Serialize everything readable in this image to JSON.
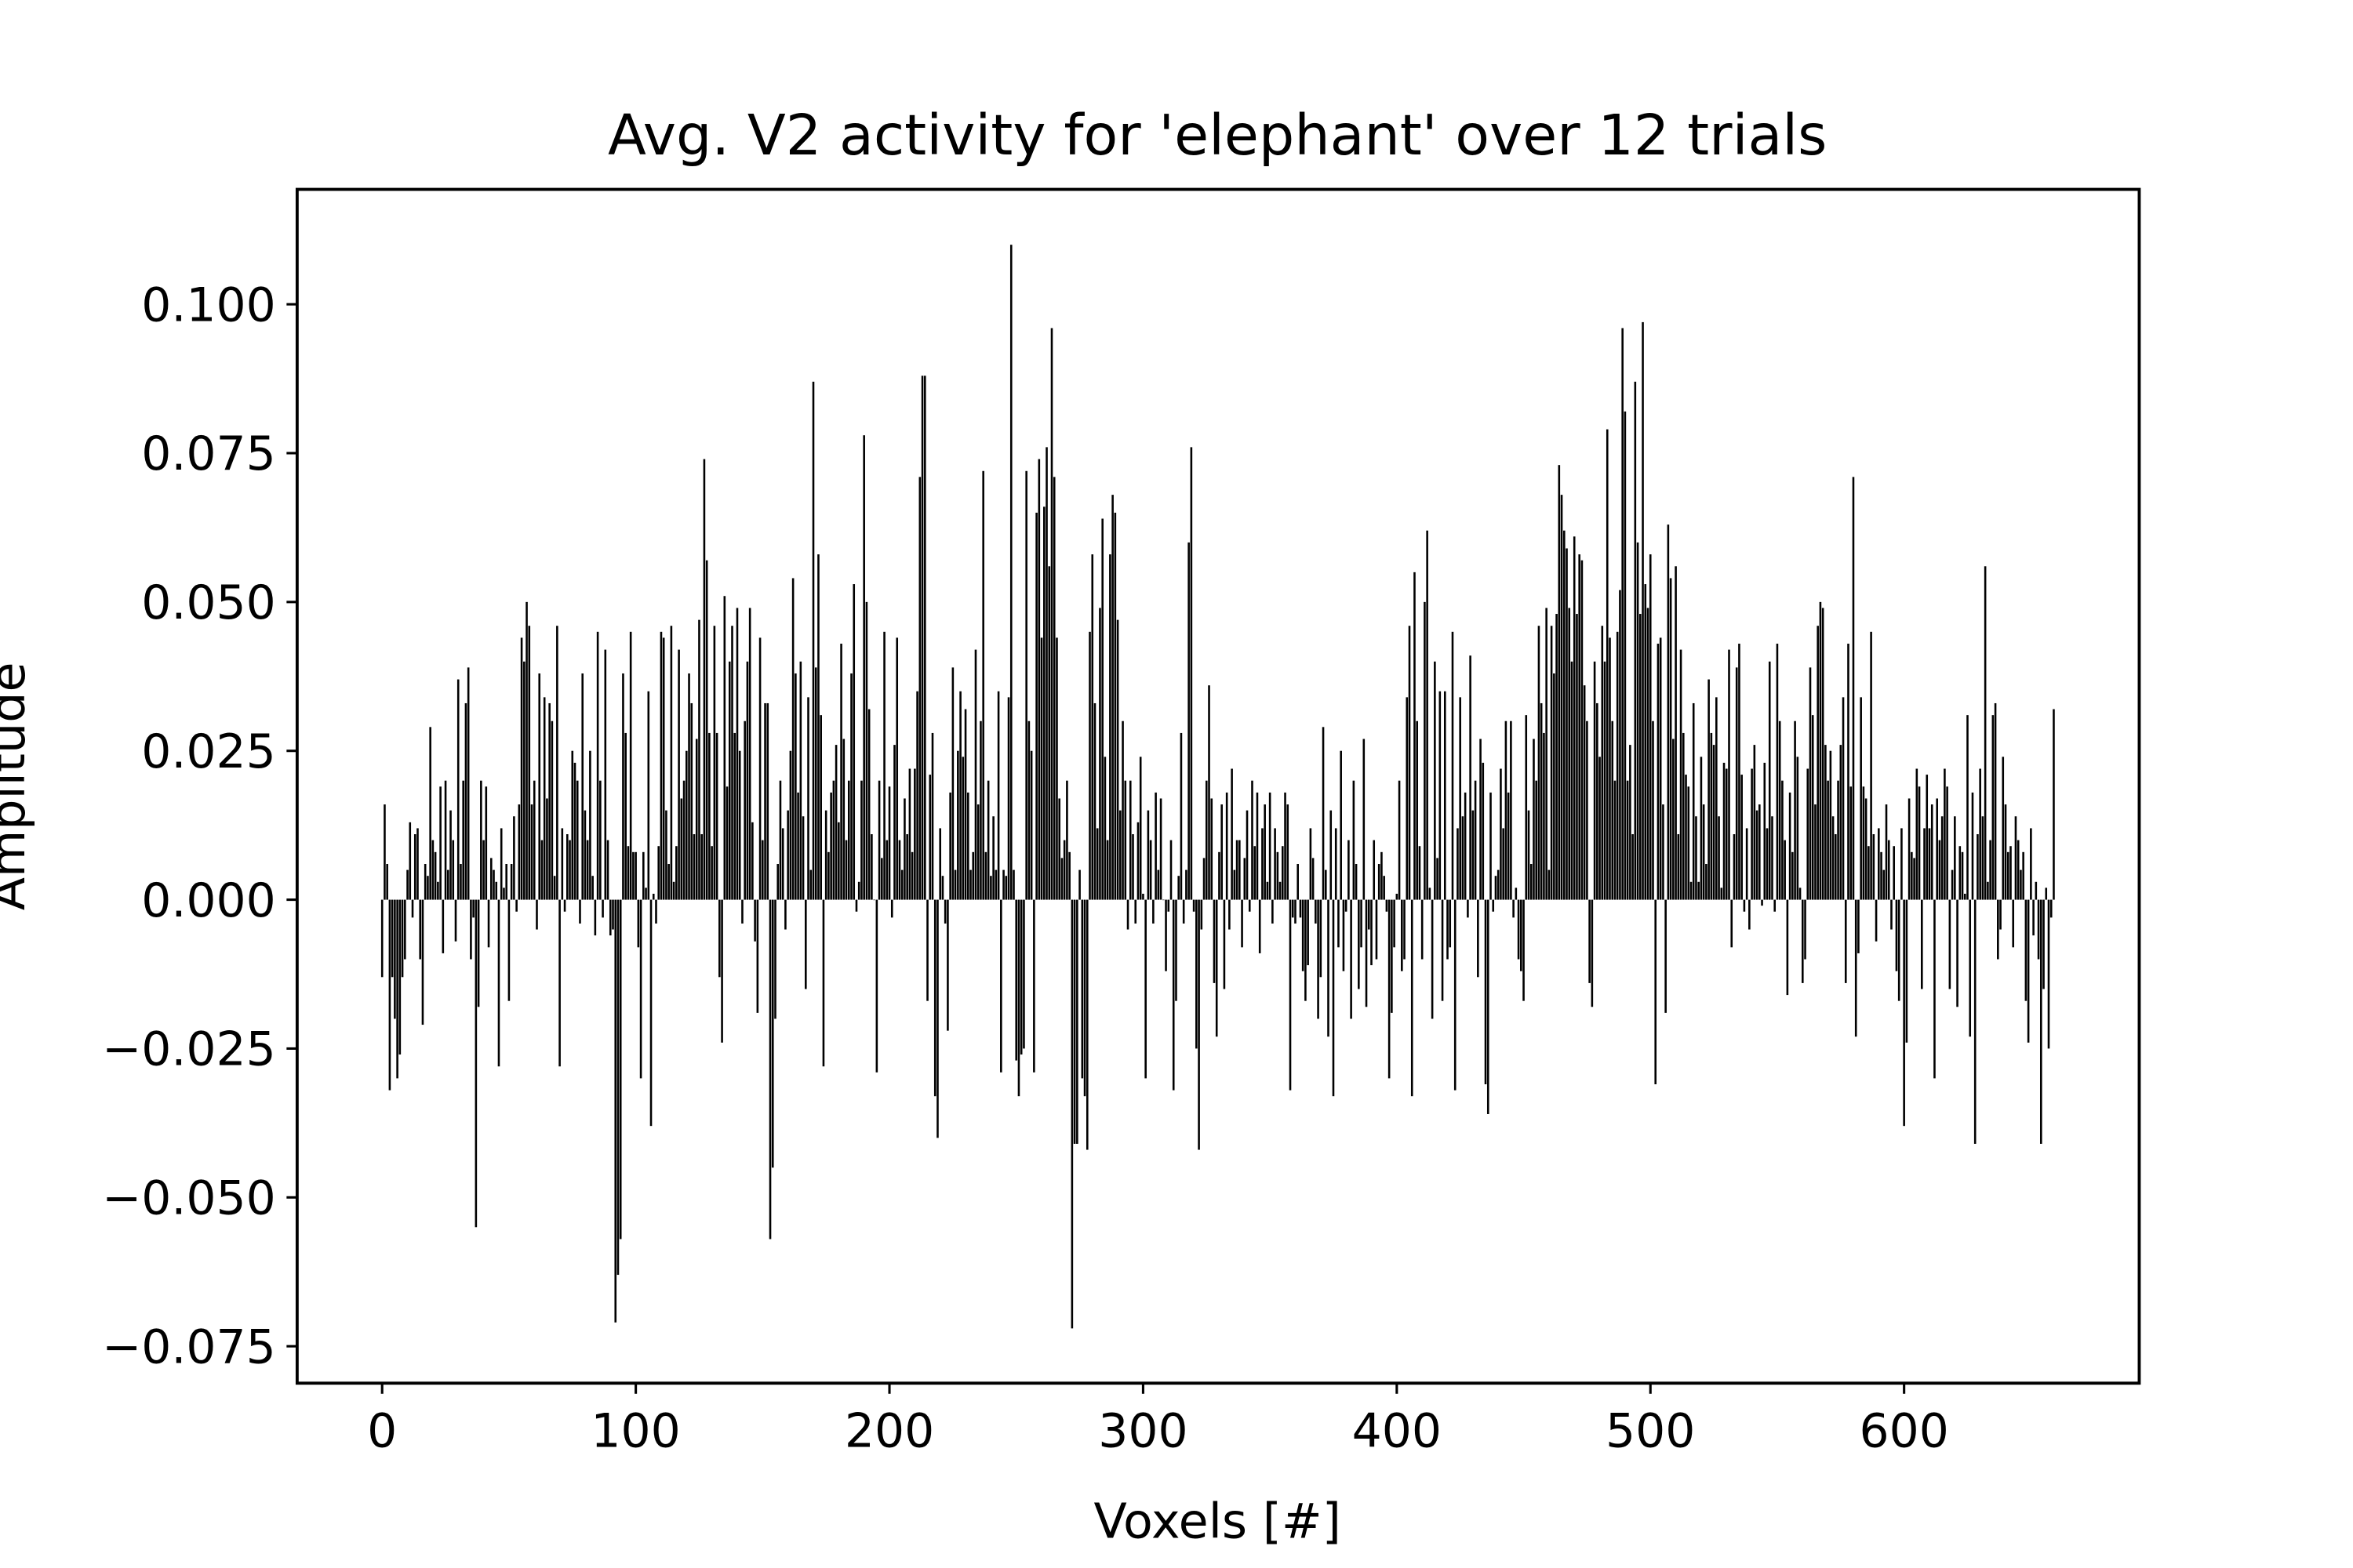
{
  "chart_data": {
    "type": "bar",
    "title": "Avg. V2 activity for 'elephant' over 12 trials",
    "xlabel": "Voxels [#]",
    "ylabel": "Amplitude",
    "color": "#000000",
    "xlim": [
      -33.5,
      692.7
    ],
    "ylim": [
      -0.0812,
      0.1193
    ],
    "xticks": [
      0,
      100,
      200,
      300,
      400,
      500,
      600
    ],
    "yticks": [
      {
        "value": -0.075,
        "label": "−0.075"
      },
      {
        "value": -0.05,
        "label": "−0.050"
      },
      {
        "value": -0.025,
        "label": "−0.025"
      },
      {
        "value": 0,
        "label": "0.000"
      },
      {
        "value": 0.025,
        "label": "0.025"
      },
      {
        "value": 0.05,
        "label": "0.050"
      },
      {
        "value": 0.075,
        "label": "0.075"
      },
      {
        "value": 0.1,
        "label": "0.100"
      }
    ],
    "x": [
      0,
      1,
      2,
      3,
      4,
      5,
      6,
      7,
      8,
      9,
      10,
      11,
      12,
      13,
      14,
      15,
      16,
      17,
      18,
      19,
      20,
      21,
      22,
      23,
      24,
      25,
      26,
      27,
      28,
      29,
      30,
      31,
      32,
      33,
      34,
      35,
      36,
      37,
      38,
      39,
      40,
      41,
      42,
      43,
      44,
      45,
      46,
      47,
      48,
      49,
      50,
      51,
      52,
      53,
      54,
      55,
      56,
      57,
      58,
      59,
      60,
      61,
      62,
      63,
      64,
      65,
      66,
      67,
      68,
      69,
      70,
      71,
      72,
      73,
      74,
      75,
      76,
      77,
      78,
      79,
      80,
      81,
      82,
      83,
      84,
      85,
      86,
      87,
      88,
      89,
      90,
      91,
      92,
      93,
      94,
      95,
      96,
      97,
      98,
      99,
      100,
      101,
      102,
      103,
      104,
      105,
      106,
      107,
      108,
      109,
      110,
      111,
      112,
      113,
      114,
      115,
      116,
      117,
      118,
      119,
      120,
      121,
      122,
      123,
      124,
      125,
      126,
      127,
      128,
      129,
      130,
      131,
      132,
      133,
      134,
      135,
      136,
      137,
      138,
      139,
      140,
      141,
      142,
      143,
      144,
      145,
      146,
      147,
      148,
      149,
      150,
      151,
      152,
      153,
      154,
      155,
      156,
      157,
      158,
      159,
      160,
      161,
      162,
      163,
      164,
      165,
      166,
      167,
      168,
      169,
      170,
      171,
      172,
      173,
      174,
      175,
      176,
      177,
      178,
      179,
      180,
      181,
      182,
      183,
      184,
      185,
      186,
      187,
      188,
      189,
      190,
      191,
      192,
      193,
      194,
      195,
      196,
      197,
      198,
      199,
      200,
      201,
      202,
      203,
      204,
      205,
      206,
      207,
      208,
      209,
      210,
      211,
      212,
      213,
      214,
      215,
      216,
      217,
      218,
      219,
      220,
      221,
      222,
      223,
      224,
      225,
      226,
      227,
      228,
      229,
      230,
      231,
      232,
      233,
      234,
      235,
      236,
      237,
      238,
      239,
      240,
      241,
      242,
      243,
      244,
      245,
      246,
      247,
      248,
      249,
      250,
      251,
      252,
      253,
      254,
      255,
      256,
      257,
      258,
      259,
      260,
      261,
      262,
      263,
      264,
      265,
      266,
      267,
      268,
      269,
      270,
      271,
      272,
      273,
      274,
      275,
      276,
      277,
      278,
      279,
      280,
      281,
      282,
      283,
      284,
      285,
      286,
      287,
      288,
      289,
      290,
      291,
      292,
      293,
      294,
      295,
      296,
      297,
      298,
      299,
      300,
      301,
      302,
      303,
      304,
      305,
      306,
      307,
      308,
      309,
      310,
      311,
      312,
      313,
      314,
      315,
      316,
      317,
      318,
      319,
      320,
      321,
      322,
      323,
      324,
      325,
      326,
      327,
      328,
      329,
      330,
      331,
      332,
      333,
      334,
      335,
      336,
      337,
      338,
      339,
      340,
      341,
      342,
      343,
      344,
      345,
      346,
      347,
      348,
      349,
      350,
      351,
      352,
      353,
      354,
      355,
      356,
      357,
      358,
      359,
      360,
      361,
      362,
      363,
      364,
      365,
      366,
      367,
      368,
      369,
      370,
      371,
      372,
      373,
      374,
      375,
      376,
      377,
      378,
      379,
      380,
      381,
      382,
      383,
      384,
      385,
      386,
      387,
      388,
      389,
      390,
      391,
      392,
      393,
      394,
      395,
      396,
      397,
      398,
      399,
      400,
      401,
      402,
      403,
      404,
      405,
      406,
      407,
      408,
      409,
      410,
      411,
      412,
      413,
      414,
      415,
      416,
      417,
      418,
      419,
      420,
      421,
      422,
      423,
      424,
      425,
      426,
      427,
      428,
      429,
      430,
      431,
      432,
      433,
      434,
      435,
      436,
      437,
      438,
      439,
      440,
      441,
      442,
      443,
      444,
      445,
      446,
      447,
      448,
      449,
      450,
      451,
      452,
      453,
      454,
      455,
      456,
      457,
      458,
      459,
      460,
      461,
      462,
      463,
      464,
      465,
      466,
      467,
      468,
      469,
      470,
      471,
      472,
      473,
      474,
      475,
      476,
      477,
      478,
      479,
      480,
      481,
      482,
      483,
      484,
      485,
      486,
      487,
      488,
      489,
      490,
      491,
      492,
      493,
      494,
      495,
      496,
      497,
      498,
      499,
      500,
      501,
      502,
      503,
      504,
      505,
      506,
      507,
      508,
      509,
      510,
      511,
      512,
      513,
      514,
      515,
      516,
      517,
      518,
      519,
      520,
      521,
      522,
      523,
      524,
      525,
      526,
      527,
      528,
      529,
      530,
      531,
      532,
      533,
      534,
      535,
      536,
      537,
      538,
      539,
      540,
      541,
      542,
      543,
      544,
      545,
      546,
      547,
      548,
      549,
      550,
      551,
      552,
      553,
      554,
      555,
      556,
      557,
      558,
      559,
      560,
      561,
      562,
      563,
      564,
      565,
      566,
      567,
      568,
      569,
      570,
      571,
      572,
      573,
      574,
      575,
      576,
      577,
      578,
      579,
      580,
      581,
      582,
      583,
      584,
      585,
      586,
      587,
      588,
      589,
      590,
      591,
      592,
      593,
      594,
      595,
      596,
      597,
      598,
      599,
      600,
      601,
      602,
      603,
      604,
      605,
      606,
      607,
      608,
      609,
      610,
      611,
      612,
      613,
      614,
      615,
      616,
      617,
      618,
      619,
      620,
      621,
      622,
      623,
      624,
      625,
      626,
      627,
      628,
      629,
      630,
      631,
      632,
      633,
      634,
      635,
      636,
      637,
      638,
      639,
      640,
      641,
      642,
      643,
      644,
      645,
      646,
      647,
      648,
      649,
      650,
      651,
      652,
      653,
      654,
      655,
      656,
      657,
      658,
      659
    ],
    "values": [
      -0.013,
      0.016,
      0.006,
      -0.032,
      -0.013,
      -0.02,
      -0.03,
      -0.026,
      -0.013,
      -0.01,
      0.005,
      0.013,
      -0.003,
      0.011,
      0.012,
      -0.01,
      -0.021,
      0.006,
      0.004,
      0.029,
      0.01,
      0.008,
      0.003,
      0.019,
      -0.009,
      0.02,
      0.005,
      0.015,
      0.01,
      -0.007,
      0.037,
      0.006,
      0.02,
      0.033,
      0.039,
      -0.01,
      -0.003,
      -0.055,
      -0.018,
      0.02,
      0.01,
      0.019,
      -0.008,
      0.007,
      0.005,
      0.003,
      -0.028,
      0.012,
      0.002,
      0.006,
      -0.017,
      0.006,
      0.014,
      -0.002,
      0.016,
      0.044,
      0.04,
      0.05,
      0.046,
      0.016,
      0.02,
      -0.005,
      0.038,
      0.01,
      0.034,
      0.017,
      0.033,
      0.03,
      0.004,
      0.046,
      -0.028,
      0.012,
      -0.002,
      0.011,
      0.01,
      0.025,
      0.023,
      0.02,
      -0.004,
      0.038,
      0.015,
      0.01,
      0.025,
      0.004,
      -0.006,
      0.045,
      0.02,
      -0.003,
      0.042,
      0.01,
      -0.006,
      -0.005,
      -0.071,
      -0.063,
      -0.057,
      0.038,
      0.028,
      0.009,
      0.045,
      0.008,
      0.008,
      -0.008,
      -0.03,
      0.008,
      0.002,
      0.035,
      -0.038,
      0.001,
      -0.004,
      0.009,
      0.045,
      0.044,
      0.015,
      0.006,
      0.046,
      0.003,
      0.009,
      0.042,
      0.017,
      0.02,
      0.025,
      0.038,
      0.033,
      0.011,
      0.027,
      0.047,
      0.011,
      0.074,
      0.057,
      0.028,
      0.009,
      0.046,
      0.028,
      -0.013,
      -0.024,
      0.051,
      0.019,
      0.04,
      0.046,
      0.028,
      0.049,
      0.025,
      -0.004,
      0.03,
      0.04,
      0.049,
      0.013,
      -0.007,
      -0.019,
      0.044,
      0.01,
      0.033,
      0.033,
      -0.057,
      -0.045,
      -0.02,
      0.006,
      0.02,
      0.012,
      -0.005,
      0.015,
      0.025,
      0.054,
      0.038,
      0.018,
      0.04,
      0.014,
      -0.015,
      0.034,
      0.005,
      0.087,
      0.039,
      0.058,
      0.031,
      -0.028,
      0.015,
      0.008,
      0.018,
      0.02,
      0.026,
      0.013,
      0.043,
      0.027,
      0.01,
      0.02,
      0.038,
      0.053,
      -0.002,
      0.003,
      0.02,
      0.078,
      0.05,
      0.032,
      0.011,
      0.0,
      -0.029,
      0.02,
      0.007,
      0.045,
      0.01,
      0.019,
      -0.003,
      0.026,
      0.044,
      0.01,
      0.005,
      0.017,
      0.011,
      0.022,
      0.008,
      0.022,
      0.035,
      0.071,
      0.088,
      0.088,
      -0.017,
      0.021,
      0.028,
      -0.033,
      -0.04,
      0.012,
      0.004,
      -0.004,
      -0.022,
      0.018,
      0.039,
      0.005,
      0.025,
      0.035,
      0.024,
      0.032,
      0.018,
      0.005,
      0.008,
      0.042,
      0.016,
      0.03,
      0.072,
      0.008,
      0.02,
      0.004,
      0.014,
      0.005,
      0.035,
      -0.029,
      0.005,
      0.004,
      0.034,
      0.11,
      0.005,
      -0.027,
      -0.033,
      -0.026,
      -0.025,
      0.072,
      0.03,
      0.025,
      -0.029,
      0.065,
      0.074,
      0.044,
      0.066,
      0.076,
      0.056,
      0.096,
      0.071,
      0.044,
      0.017,
      0.007,
      0.01,
      0.02,
      0.008,
      -0.072,
      -0.041,
      -0.041,
      0.005,
      -0.03,
      -0.033,
      -0.042,
      0.045,
      0.058,
      0.033,
      0.012,
      0.049,
      0.064,
      0.024,
      0.01,
      0.058,
      0.068,
      0.065,
      0.047,
      0.015,
      0.03,
      0.02,
      -0.005,
      0.02,
      0.011,
      -0.004,
      0.013,
      0.024,
      0.001,
      -0.03,
      0.015,
      0.01,
      -0.004,
      0.018,
      0.005,
      0.017,
      0.0,
      -0.012,
      -0.002,
      0.01,
      -0.032,
      -0.017,
      0.004,
      0.028,
      -0.004,
      0.005,
      0.06,
      0.076,
      -0.002,
      -0.025,
      -0.042,
      -0.005,
      0.007,
      0.02,
      0.036,
      0.017,
      -0.014,
      -0.023,
      0.008,
      0.016,
      -0.015,
      0.018,
      -0.005,
      0.022,
      0.005,
      0.01,
      0.01,
      -0.008,
      0.007,
      0.015,
      -0.002,
      0.02,
      0.009,
      0.018,
      -0.009,
      0.012,
      0.016,
      0.003,
      0.018,
      -0.004,
      0.012,
      0.008,
      0.003,
      0.009,
      0.018,
      0.016,
      -0.032,
      -0.003,
      -0.004,
      0.006,
      -0.003,
      -0.012,
      -0.017,
      -0.011,
      0.012,
      0.007,
      -0.004,
      -0.02,
      -0.013,
      0.029,
      0.005,
      -0.023,
      0.015,
      -0.033,
      0.012,
      -0.008,
      0.025,
      -0.012,
      -0.002,
      0.01,
      -0.02,
      0.02,
      0.006,
      -0.015,
      -0.008,
      0.027,
      -0.018,
      -0.005,
      -0.011,
      0.01,
      -0.01,
      0.006,
      0.008,
      0.004,
      -0.002,
      -0.03,
      -0.019,
      -0.008,
      0.001,
      0.02,
      -0.012,
      -0.01,
      0.034,
      0.046,
      -0.033,
      0.055,
      0.03,
      0.009,
      -0.01,
      0.05,
      0.062,
      0.002,
      -0.02,
      0.04,
      0.007,
      0.035,
      -0.017,
      0.035,
      -0.01,
      -0.008,
      0.045,
      -0.032,
      0.012,
      0.034,
      0.014,
      0.018,
      -0.003,
      0.041,
      0.015,
      0.02,
      -0.013,
      0.027,
      0.023,
      -0.031,
      -0.036,
      0.018,
      -0.002,
      0.004,
      0.005,
      0.022,
      0.012,
      0.03,
      0.018,
      0.03,
      -0.003,
      0.002,
      -0.01,
      -0.012,
      -0.017,
      0.031,
      0.015,
      0.006,
      0.027,
      0.02,
      0.046,
      0.033,
      0.028,
      0.049,
      0.005,
      0.046,
      0.038,
      0.048,
      0.073,
      0.068,
      0.062,
      0.059,
      0.049,
      0.04,
      0.061,
      0.048,
      0.058,
      0.057,
      0.036,
      0.03,
      -0.014,
      -0.018,
      0.04,
      0.033,
      0.024,
      0.046,
      0.04,
      0.079,
      0.044,
      0.03,
      0.02,
      0.045,
      0.052,
      0.096,
      0.082,
      0.02,
      0.026,
      0.011,
      0.087,
      0.06,
      0.048,
      0.097,
      0.053,
      0.049,
      0.058,
      0.03,
      -0.031,
      0.043,
      0.044,
      0.016,
      -0.019,
      0.063,
      0.054,
      0.027,
      0.056,
      0.011,
      0.042,
      0.028,
      0.021,
      0.019,
      0.003,
      0.033,
      0.014,
      0.003,
      0.024,
      0.016,
      0.006,
      0.037,
      0.028,
      0.026,
      0.034,
      0.014,
      0.002,
      0.023,
      0.022,
      0.042,
      -0.008,
      0.011,
      0.039,
      0.043,
      0.021,
      -0.002,
      0.012,
      -0.005,
      0.022,
      0.026,
      0.015,
      0.016,
      -0.001,
      0.023,
      0.012,
      0.04,
      0.014,
      -0.002,
      0.043,
      0.03,
      0.02,
      0.01,
      -0.016,
      0.018,
      0.008,
      0.03,
      0.024,
      0.002,
      -0.014,
      -0.01,
      0.022,
      0.039,
      0.031,
      0.016,
      0.046,
      0.05,
      0.049,
      0.026,
      0.02,
      0.025,
      0.014,
      0.011,
      0.02,
      0.026,
      0.034,
      -0.014,
      0.043,
      0.019,
      0.071,
      -0.023,
      -0.009,
      0.034,
      0.019,
      0.017,
      0.009,
      0.045,
      0.011,
      -0.007,
      0.012,
      0.008,
      0.005,
      0.016,
      0.01,
      -0.005,
      0.009,
      -0.012,
      -0.017,
      0.012,
      -0.038,
      -0.024,
      0.017,
      0.008,
      0.007,
      0.022,
      0.019,
      -0.015,
      0.012,
      0.021,
      0.012,
      0.016,
      -0.03,
      0.017,
      0.01,
      0.014,
      0.022,
      0.019,
      -0.015,
      0.005,
      0.014,
      -0.018,
      0.009,
      0.008,
      0.001,
      0.031,
      -0.023,
      0.018,
      -0.041,
      0.011,
      0.022,
      0.014,
      0.056,
      0.003,
      0.01,
      0.031,
      0.033,
      -0.01,
      -0.005,
      0.024,
      0.016,
      0.008,
      0.009,
      -0.008,
      0.014,
      0.01,
      0.005,
      0.008,
      -0.017,
      -0.024,
      0.012,
      -0.006,
      0.003,
      -0.01,
      -0.041,
      -0.015,
      0.002,
      -0.025,
      -0.003,
      0.032
    ]
  }
}
